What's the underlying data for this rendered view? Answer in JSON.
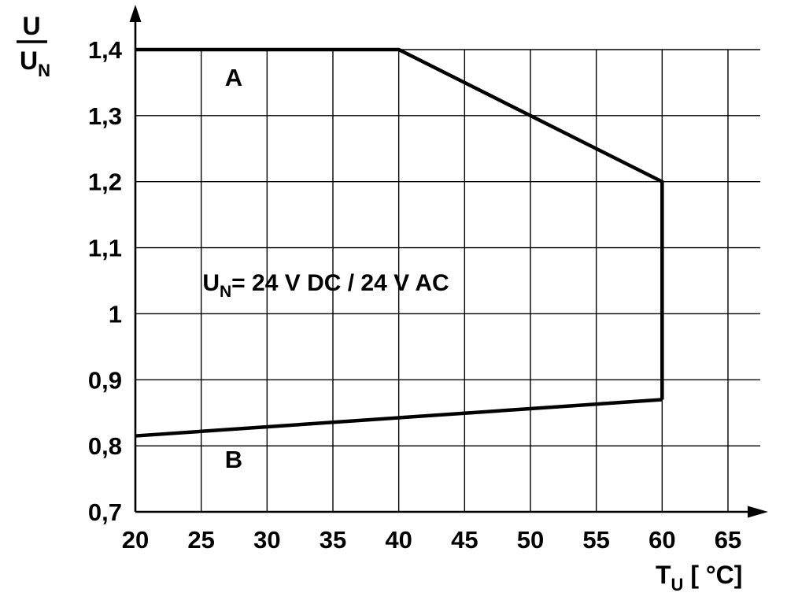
{
  "figure": {
    "background": "#ffffff",
    "ink_color": "#000000"
  },
  "chart_data": {
    "type": "line",
    "title": "",
    "xlabel": "T_U [°C]",
    "ylabel": "U/U_N",
    "xlim": [
      20,
      65
    ],
    "ylim": [
      0.7,
      1.4
    ],
    "grid": true,
    "legend": "none",
    "color": "#000000",
    "x_ticks": [
      20,
      25,
      30,
      35,
      40,
      45,
      50,
      55,
      60,
      65
    ],
    "x_tick_labels": [
      "20",
      "25",
      "30",
      "35",
      "40",
      "45",
      "50",
      "55",
      "60",
      "65"
    ],
    "y_ticks": [
      0.7,
      0.8,
      0.9,
      1.0,
      1.1,
      1.2,
      1.3,
      1.4
    ],
    "y_tick_labels": [
      "0,7",
      "0,8",
      "0,9",
      "1",
      "1,1",
      "1,2",
      "1,3",
      "1,4"
    ],
    "series": [
      {
        "name": "A",
        "points": [
          [
            20,
            1.4
          ],
          [
            40,
            1.4
          ],
          [
            60,
            1.2
          ],
          [
            60,
            0.87
          ]
        ],
        "label_pos": [
          26.8,
          1.345
        ]
      },
      {
        "name": "B",
        "points": [
          [
            20,
            0.815
          ],
          [
            60,
            0.87
          ]
        ],
        "label_pos": [
          26.8,
          0.767
        ]
      }
    ],
    "annotation": "U_N= 24 V DC / 24 V AC",
    "annotation_parts": {
      "main": "U",
      "sub": "N",
      "rest": "= 24 V DC / 24 V AC"
    },
    "annotation_pos": [
      25.1,
      1.035
    ],
    "ylabel_parts": {
      "numerator": "U",
      "denominator_main": "U",
      "denominator_sub": "N"
    },
    "xlabel_parts": {
      "main": "T",
      "sub": "U",
      "rest": " [ °C]"
    }
  }
}
